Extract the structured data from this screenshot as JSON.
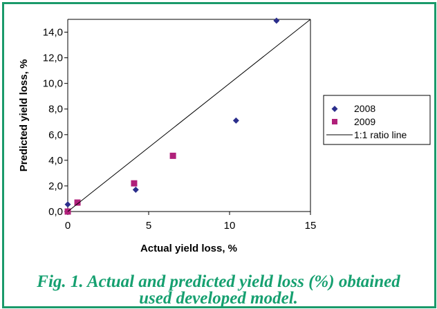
{
  "chart_data": {
    "type": "scatter",
    "title": "",
    "xlabel": "Actual yield loss, %",
    "ylabel": "Predicted yield loss, %",
    "xlim": [
      0,
      15
    ],
    "ylim": [
      0,
      15
    ],
    "x_ticks": [
      0,
      5,
      10,
      15
    ],
    "x_tick_labels": [
      "0",
      "5",
      "10",
      "15"
    ],
    "y_ticks": [
      0,
      2,
      4,
      6,
      8,
      10,
      12,
      14
    ],
    "y_tick_labels": [
      "0,0",
      "2,0",
      "4,0",
      "6,0",
      "8,0",
      "10,0",
      "12,0",
      "14,0"
    ],
    "grid": false,
    "legend_position": "right",
    "series": [
      {
        "name": "2008",
        "marker": "diamond",
        "color": "#2b2e8c",
        "points": [
          [
            0,
            0.55
          ],
          [
            4.2,
            1.7
          ],
          [
            10.4,
            7.1
          ],
          [
            12.9,
            14.9
          ]
        ]
      },
      {
        "name": "2009",
        "marker": "square",
        "color": "#b0207a",
        "points": [
          [
            0,
            0.0
          ],
          [
            0.6,
            0.7
          ],
          [
            4.1,
            2.2
          ],
          [
            6.5,
            4.35
          ]
        ]
      },
      {
        "name": "1:1 ratio line",
        "marker": "line",
        "color": "#000000",
        "points": [
          [
            0,
            0
          ],
          [
            15,
            15
          ]
        ]
      }
    ]
  },
  "caption": {
    "line1": "Fig. 1. Actual and predicted yield loss (%) obtained",
    "line2": "used developed model."
  },
  "colors": {
    "frame": "#1a9a6a",
    "caption": "#16a070"
  }
}
